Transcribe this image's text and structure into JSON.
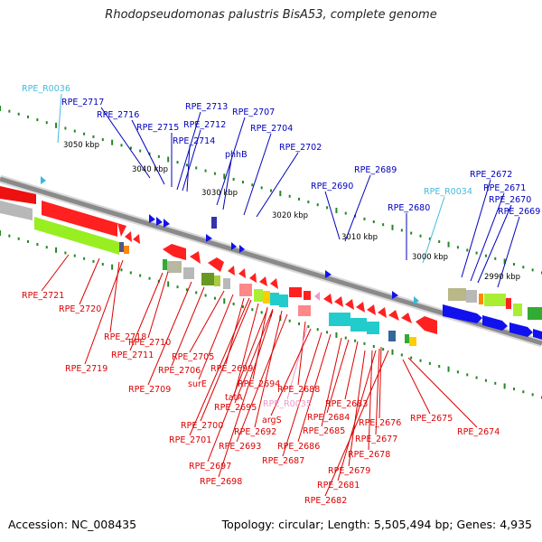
{
  "title": "Rhodopseudomonas palustris BisA53, complete genome",
  "footer": {
    "accession": "Accession: NC_008435",
    "summary": "Topology: circular; Length: 5,505,494 bp; Genes: 4,935"
  },
  "colors": {
    "forward_label": "#0000bb",
    "reverse_label": "#dd0000",
    "rna_label": "#44bbdd",
    "pseudo_label": "#ee99cc",
    "backbone": "#888888",
    "tick": "#228822"
  },
  "scale_ticks": [
    "3050 kbp",
    "3040 kbp",
    "3030 kbp",
    "3020 kbp",
    "3010 kbp",
    "3000 kbp",
    "2990 kbp"
  ],
  "forward_labels": [
    "RPE_R0036",
    "RPE_2717",
    "RPE_2716",
    "RPE_2715",
    "RPE_2713",
    "RPE_2712",
    "RPE_2714",
    "RPE_2707",
    "phhB",
    "RPE_2704",
    "RPE_2702",
    "RPE_2690",
    "RPE_2689",
    "RPE_2680",
    "RPE_R0034",
    "RPE_2672",
    "RPE_2671",
    "RPE_2670",
    "RPE_2669"
  ],
  "reverse_labels": [
    "RPE_2721",
    "RPE_2720",
    "RPE_2718",
    "RPE_2719",
    "RPE_2710",
    "RPE_2711",
    "RPE_2709",
    "RPE_2706",
    "RPE_2705",
    "surE",
    "RPE_2699",
    "tatA",
    "RPE_2694",
    "RPE_2695",
    "RPE_2700",
    "RPE_2701",
    "RPE_2692",
    "RPE_2693",
    "RPE_2697",
    "RPE_2698",
    "RPE_2688",
    "RPE_R0035",
    "argS",
    "RPE_2686",
    "RPE_2687",
    "RPE_2685",
    "RPE_2684",
    "RPE_2683",
    "RPE_2676",
    "RPE_2677",
    "RPE_2678",
    "RPE_2679",
    "RPE_2681",
    "RPE_2682",
    "RPE_2675",
    "RPE_2674"
  ]
}
